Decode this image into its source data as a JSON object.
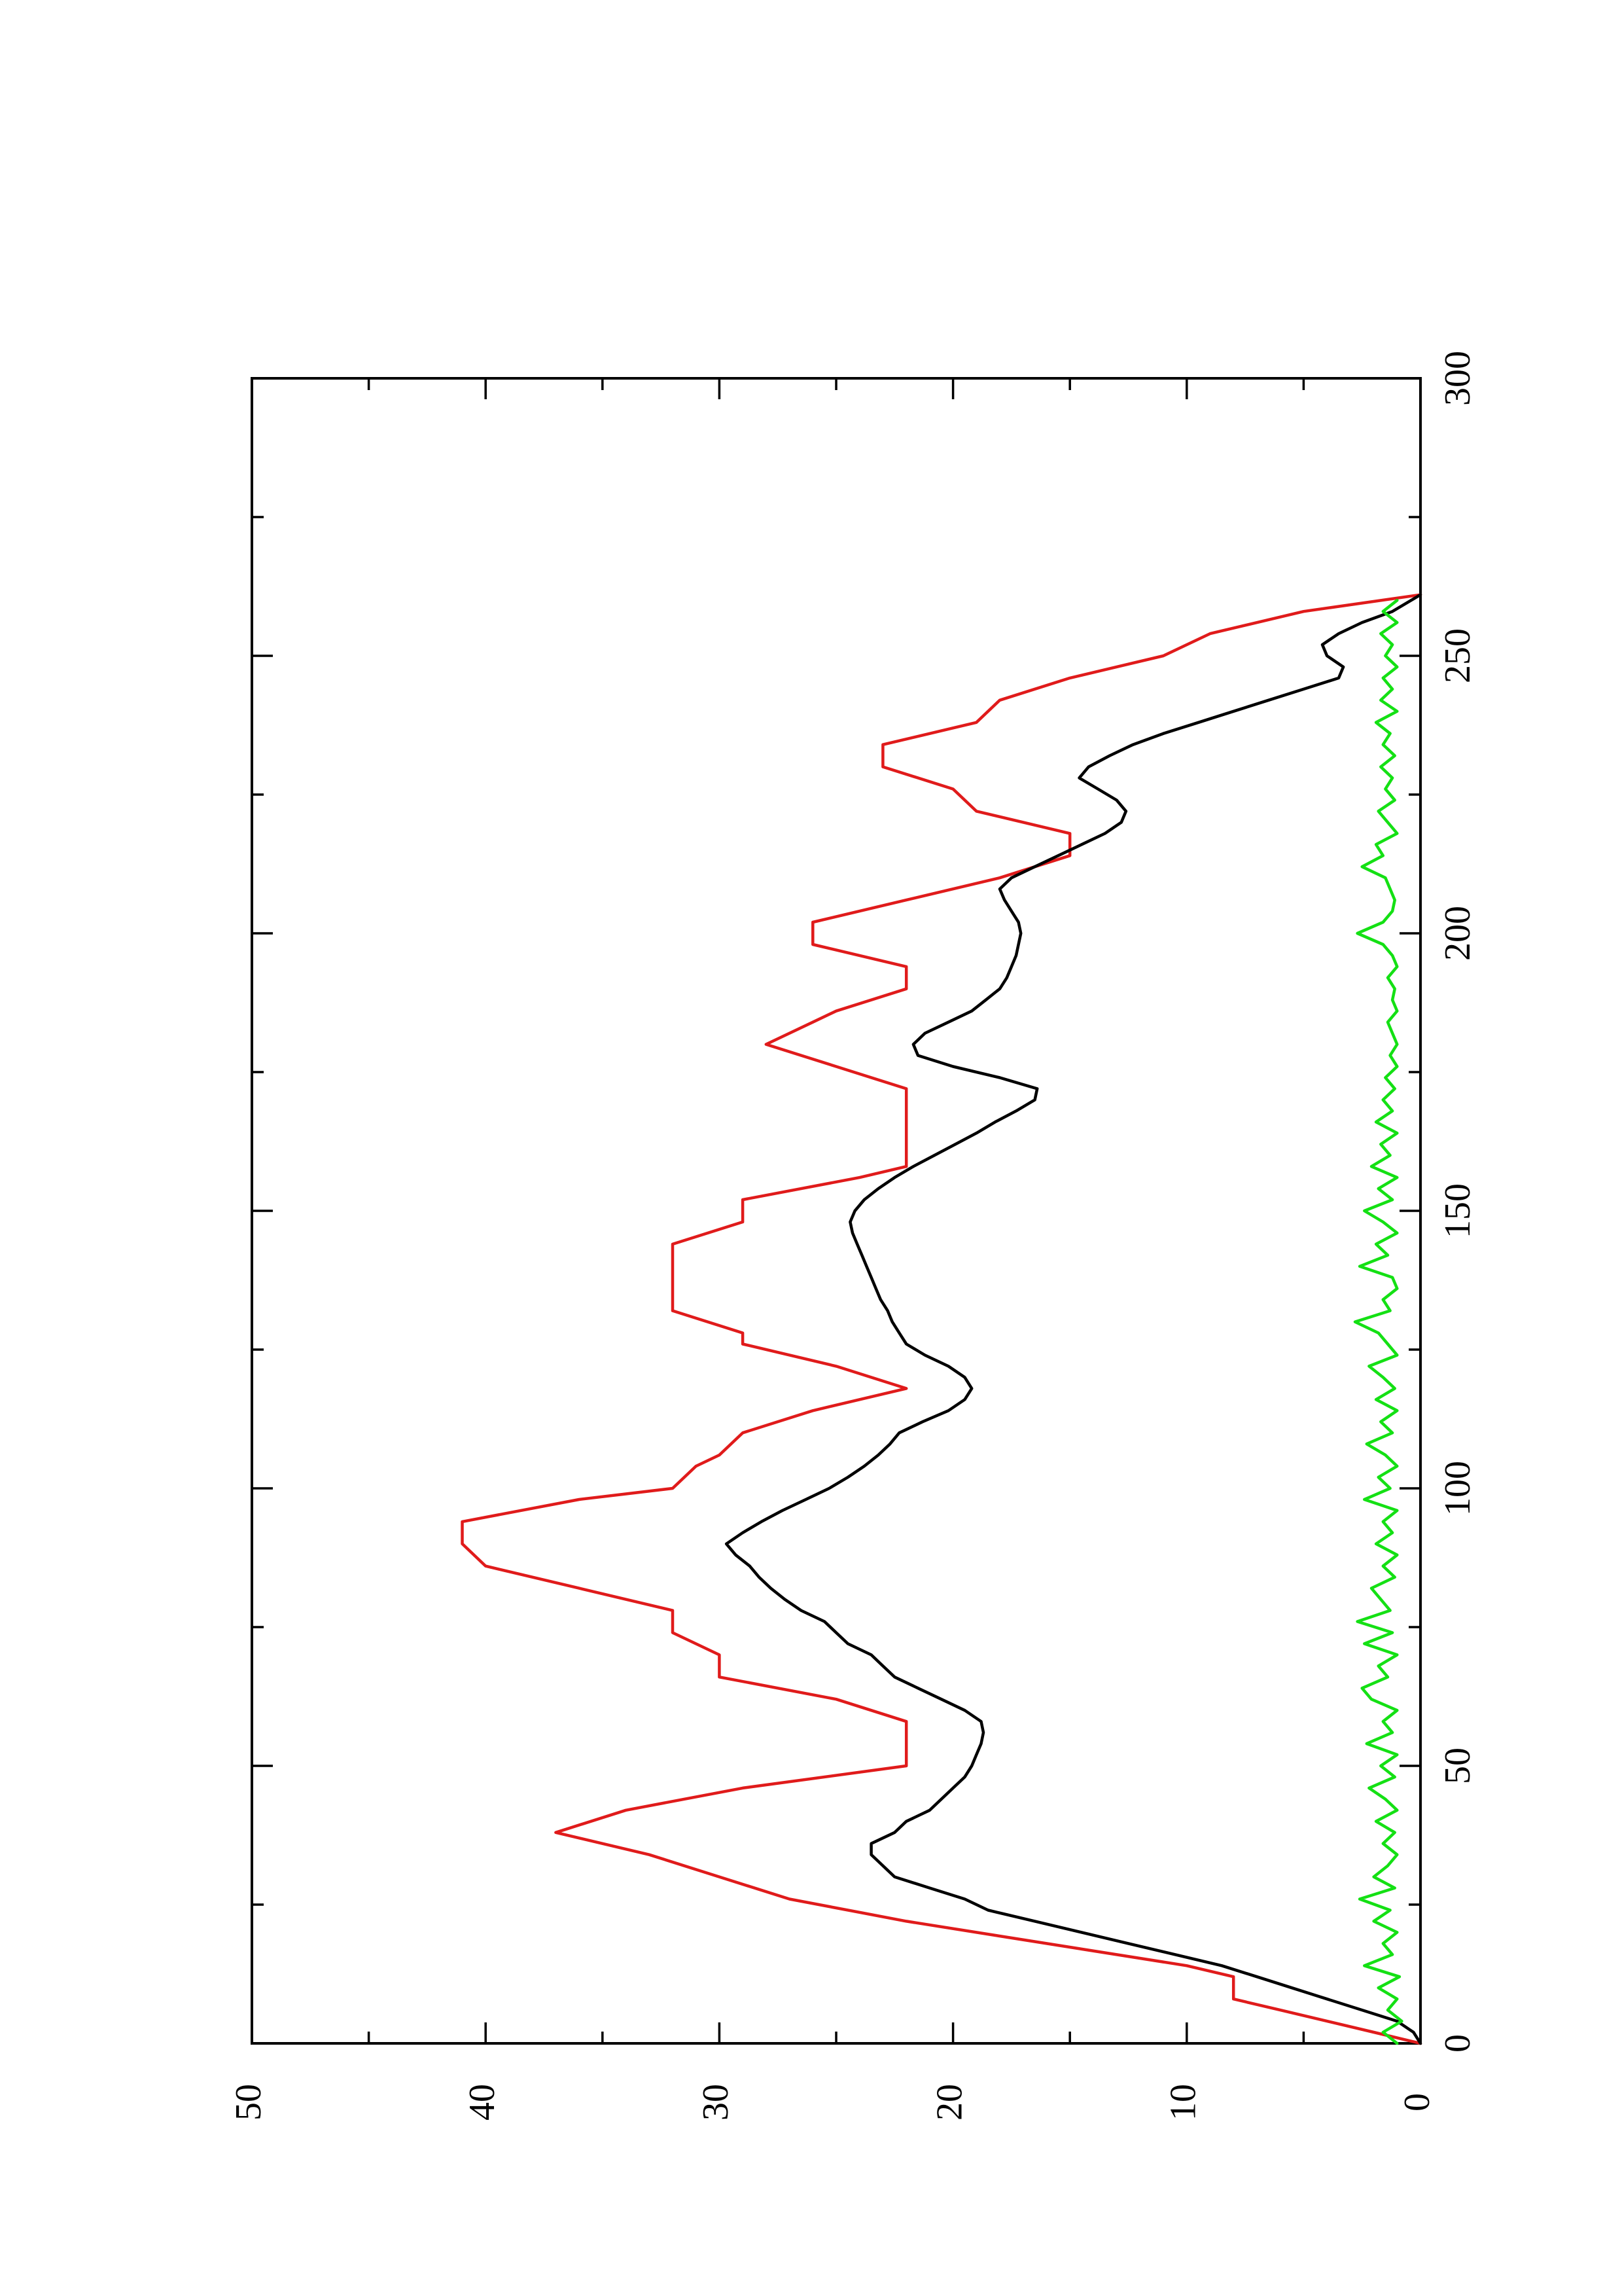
{
  "chart_data": {
    "type": "line",
    "orientation": "rotated-90-ccw",
    "title": "",
    "xlabel": "",
    "ylabel": "",
    "xlim": [
      0,
      300
    ],
    "ylim": [
      0,
      50
    ],
    "x_ticks": [
      0,
      50,
      100,
      150,
      200,
      250,
      300
    ],
    "x_minor_ticks": [
      25,
      75,
      125,
      175,
      225,
      275
    ],
    "y_ticks": [
      0,
      10,
      20,
      30,
      40,
      50
    ],
    "y_minor_ticks": [
      5,
      15,
      25,
      35,
      45
    ],
    "grid": false,
    "legend": "none",
    "series": [
      {
        "color": "#e01b1b",
        "x": [
          0,
          2,
          6,
          8,
          12,
          14,
          18,
          22,
          26,
          30,
          34,
          38,
          42,
          46,
          50,
          54,
          58,
          62,
          66,
          70,
          74,
          78,
          82,
          86,
          90,
          94,
          98,
          100,
          104,
          106,
          110,
          114,
          118,
          122,
          126,
          128,
          132,
          136,
          140,
          144,
          148,
          152,
          156,
          158,
          162,
          166,
          170,
          172,
          176,
          180,
          184,
          186,
          190,
          194,
          198,
          202,
          206,
          210,
          214,
          218,
          222,
          226,
          230,
          234,
          238,
          242,
          246,
          250,
          254,
          258,
          261
        ],
        "y": [
          0,
          2,
          6,
          8,
          8,
          10,
          16,
          22,
          27,
          30,
          33,
          37,
          34,
          29,
          22,
          22,
          22,
          25,
          30,
          30,
          32,
          32,
          36,
          40,
          41,
          41,
          36,
          32,
          31,
          30,
          29,
          26,
          22,
          25,
          29,
          29,
          32,
          32,
          32,
          32,
          29,
          29,
          24,
          22,
          22,
          22,
          22,
          22,
          25,
          28,
          26,
          25,
          22,
          22,
          26,
          26,
          22,
          18,
          15,
          15,
          19,
          20,
          23,
          23,
          19,
          18,
          15,
          11,
          9,
          5,
          0
        ]
      },
      {
        "color": "#000000",
        "x": [
          0,
          2,
          4,
          6,
          8,
          10,
          12,
          14,
          16,
          18,
          20,
          22,
          24,
          26,
          28,
          30,
          32,
          34,
          36,
          38,
          40,
          42,
          44,
          46,
          48,
          50,
          52,
          54,
          56,
          58,
          60,
          62,
          64,
          66,
          68,
          70,
          72,
          74,
          76,
          78,
          80,
          82,
          84,
          86,
          88,
          90,
          92,
          94,
          96,
          98,
          100,
          102,
          104,
          106,
          108,
          110,
          112,
          114,
          116,
          118,
          120,
          122,
          124,
          126,
          128,
          130,
          132,
          134,
          136,
          138,
          140,
          142,
          144,
          146,
          148,
          150,
          152,
          154,
          156,
          158,
          160,
          162,
          164,
          166,
          168,
          170,
          172,
          174,
          176,
          178,
          180,
          182,
          184,
          186,
          188,
          190,
          192,
          194,
          196,
          198,
          200,
          202,
          204,
          206,
          208,
          210,
          212,
          214,
          216,
          218,
          220,
          222,
          224,
          226,
          228,
          230,
          232,
          234,
          236,
          238,
          240,
          242,
          244,
          246,
          248,
          250,
          252,
          254,
          256,
          258,
          261
        ],
        "y": [
          0,
          0.3,
          1,
          2.5,
          4,
          5.5,
          7,
          8.5,
          10.5,
          12.5,
          14.5,
          16.5,
          18.5,
          19.5,
          21,
          22.5,
          23,
          23.5,
          23.5,
          22.5,
          22,
          21,
          20.5,
          20,
          19.5,
          19.2,
          19,
          18.8,
          18.7,
          18.8,
          19.5,
          20.5,
          21.5,
          22.5,
          23,
          23.5,
          24.5,
          25,
          25.5,
          26.5,
          27.2,
          27.8,
          28.3,
          28.7,
          29.3,
          29.7,
          29,
          28.2,
          27.3,
          26.3,
          25.3,
          24.5,
          23.8,
          23.2,
          22.7,
          22.3,
          21.3,
          20.2,
          19.5,
          19.2,
          19.5,
          20.2,
          21.2,
          22,
          22.3,
          22.6,
          22.8,
          23.1,
          23.3,
          23.5,
          23.7,
          23.9,
          24.1,
          24.3,
          24.4,
          24.2,
          23.8,
          23.2,
          22.5,
          21.7,
          20.8,
          19.9,
          19,
          18.2,
          17.3,
          16.5,
          16.4,
          18,
          20,
          21.5,
          21.7,
          21.2,
          20.2,
          19.2,
          18.6,
          18,
          17.7,
          17.5,
          17.3,
          17.2,
          17.1,
          17.2,
          17.5,
          17.8,
          18,
          17.5,
          16.5,
          15.5,
          14.5,
          13.5,
          12.8,
          12.6,
          13,
          13.8,
          14.6,
          14.2,
          13.3,
          12.3,
          11,
          9.5,
          8,
          6.5,
          5,
          3.5,
          3.3,
          4,
          4.2,
          3.5,
          2.5,
          1.2,
          0
        ]
      },
      {
        "color": "#14e014",
        "x": [
          0,
          2,
          4,
          6,
          8,
          10,
          12,
          14,
          16,
          18,
          20,
          22,
          24,
          26,
          28,
          30,
          32,
          34,
          36,
          38,
          40,
          42,
          44,
          46,
          48,
          50,
          52,
          54,
          56,
          58,
          60,
          62,
          64,
          66,
          68,
          70,
          72,
          74,
          76,
          78,
          80,
          82,
          84,
          86,
          88,
          90,
          92,
          94,
          96,
          98,
          100,
          102,
          104,
          106,
          108,
          110,
          112,
          114,
          116,
          118,
          120,
          122,
          124,
          126,
          128,
          130,
          132,
          134,
          136,
          138,
          140,
          142,
          144,
          146,
          148,
          150,
          152,
          154,
          156,
          158,
          160,
          162,
          164,
          166,
          168,
          170,
          172,
          174,
          176,
          178,
          180,
          182,
          184,
          186,
          188,
          190,
          192,
          194,
          196,
          198,
          200,
          202,
          204,
          206,
          208,
          210,
          212,
          214,
          216,
          218,
          220,
          222,
          224,
          226,
          228,
          230,
          232,
          234,
          236,
          238,
          240,
          242,
          244,
          246,
          248,
          250,
          252,
          254,
          256,
          258,
          260
        ],
        "y": [
          1,
          1.6,
          0.8,
          1.4,
          1,
          1.8,
          0.9,
          2.4,
          1.2,
          1.6,
          1,
          2,
          1.3,
          2.6,
          1.1,
          2,
          1.4,
          1,
          1.6,
          1.1,
          1.9,
          1,
          1.5,
          2.2,
          1.1,
          1.7,
          1,
          2.3,
          1.2,
          1.6,
          1,
          2.1,
          2.5,
          1.4,
          1.8,
          1,
          2.4,
          1.2,
          2.7,
          1.3,
          1.7,
          2.1,
          1.1,
          1.6,
          1,
          1.9,
          1.2,
          1.6,
          1,
          2.4,
          1.3,
          1.8,
          1,
          1.5,
          2.3,
          1.2,
          1.7,
          1,
          1.9,
          1.1,
          1.6,
          2.2,
          1,
          1.4,
          1.8,
          2.8,
          1.3,
          1.6,
          1,
          1.2,
          2.6,
          1.4,
          1.9,
          1,
          1.6,
          2.4,
          1.2,
          1.8,
          1,
          2.1,
          1.3,
          1.7,
          1,
          1.9,
          1.2,
          1.6,
          1.1,
          1.5,
          1,
          1.3,
          1,
          1.2,
          1.4,
          1,
          1.2,
          1.1,
          1.4,
          1,
          1.2,
          1.6,
          2.7,
          1.6,
          1.2,
          1.1,
          1.3,
          1.5,
          2.5,
          1.6,
          1.9,
          1,
          1.4,
          1.8,
          1.1,
          1.5,
          1.2,
          1.7,
          1.1,
          1.6,
          1.3,
          1.9,
          1,
          1.7,
          1.2,
          1.6,
          1,
          1.5,
          1.2,
          1.7,
          1,
          1.6,
          1
        ]
      }
    ]
  }
}
